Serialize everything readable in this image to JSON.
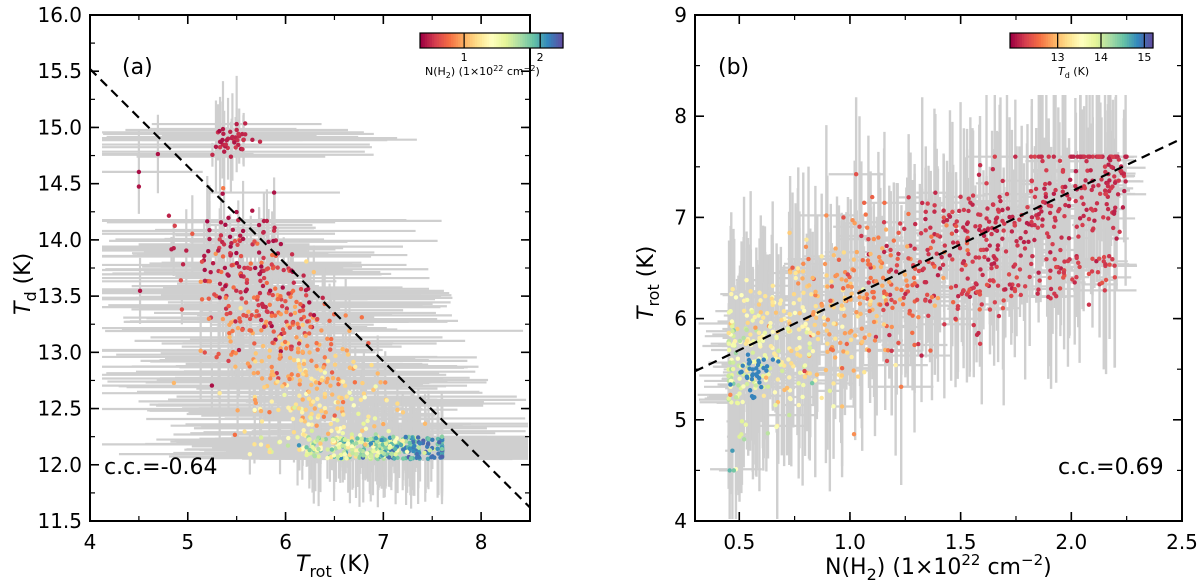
{
  "chart_data": [
    {
      "type": "scatter",
      "panel": "(a)",
      "xlabel": "T_rot (K)",
      "ylabel": "T_d (K)",
      "xlim": [
        4,
        8.5
      ],
      "ylim": [
        11.5,
        16.0
      ],
      "xticks": [
        4,
        5,
        6,
        7,
        8
      ],
      "xticklabels": [
        "4",
        "5",
        "6",
        "7",
        "8"
      ],
      "yticks": [
        11.5,
        12.0,
        12.5,
        13.0,
        13.5,
        14.0,
        14.5,
        15.0,
        15.5,
        16.0
      ],
      "yticklabels": [
        "11.5",
        "12.0",
        "12.5",
        "13.0",
        "13.5",
        "14.0",
        "14.5",
        "15.0",
        "15.5",
        "16.0"
      ],
      "fit_line": {
        "x": [
          4,
          8.5
        ],
        "y": [
          15.52,
          11.62
        ]
      },
      "annotation": "c.c.=-0.64",
      "colorbar": {
        "quantity": "N(H2)",
        "label": "N(H2) (1×10²² cm⁻²)",
        "ticks": [
          1,
          2
        ],
        "range": [
          0.42,
          2.3
        ],
        "position": "top-right"
      },
      "point_groups": [
        {
          "T_rot": [
            5.5,
            5.6
          ],
          "T_d": [
            14.9,
            14.8
          ],
          "color_value": 0.45
        },
        {
          "T_rot": [
            4.8,
            7.3
          ],
          "T_d": [
            14.8,
            13.5
          ],
          "color_value": 0.6
        },
        {
          "T_rot": [
            5.5,
            7.4
          ],
          "T_d": [
            14.1,
            13.0
          ],
          "color_value": 1.0
        },
        {
          "T_rot": [
            6.1,
            7.5
          ],
          "T_d": [
            13.4,
            12.6
          ],
          "color_value": 1.35
        },
        {
          "T_rot": [
            6.4,
            7.5
          ],
          "T_d": [
            12.8,
            12.1
          ],
          "color_value": 1.9
        }
      ]
    },
    {
      "type": "scatter",
      "panel": "(b)",
      "xlabel": "N(H2) (1×10²² cm⁻²)",
      "ylabel": "T_rot (K)",
      "xlim": [
        0.3,
        2.5
      ],
      "ylim": [
        4,
        9
      ],
      "xticks": [
        0.5,
        1.0,
        1.5,
        2.0,
        2.5
      ],
      "xticklabels": [
        "0.5",
        "1.0",
        "1.5",
        "2.0",
        "2.5"
      ],
      "yticks": [
        4,
        5,
        6,
        7,
        8,
        9
      ],
      "yticklabels": [
        "4",
        "5",
        "6",
        "7",
        "8",
        "9"
      ],
      "fit_line": {
        "x": [
          0.3,
          2.5
        ],
        "y": [
          5.48,
          7.78
        ]
      },
      "annotation": "c.c.=0.69",
      "colorbar": {
        "quantity": "T_d",
        "label": "T_d (K)",
        "ticks": [
          13,
          14,
          15
        ],
        "range": [
          11.9,
          15.2
        ],
        "position": "top-right"
      },
      "point_groups": [
        {
          "NH2": [
            0.45,
            0.7
          ],
          "T_rot": [
            4.8,
            6.2
          ],
          "T_d": 14.8
        },
        {
          "NH2": [
            0.6,
            1.0
          ],
          "T_rot": [
            5.6,
            6.8
          ],
          "T_d": 13.8
        },
        {
          "NH2": [
            0.9,
            1.5
          ],
          "T_rot": [
            5.8,
            7.2
          ],
          "T_d": 13.2
        },
        {
          "NH2": [
            1.3,
            1.9
          ],
          "T_rot": [
            6.0,
            7.3
          ],
          "T_d": 12.6
        },
        {
          "NH2": [
            1.6,
            2.2
          ],
          "T_rot": [
            6.3,
            7.5
          ],
          "T_d": 12.2
        }
      ]
    }
  ],
  "labels": {
    "panel_a": {
      "tag": "(a)",
      "cc": "c.c.=-0.64",
      "xlabel_main": "T",
      "xlabel_sub": "rot",
      "xlabel_unit": " (K)",
      "ylabel_main": "T",
      "ylabel_sub": "d",
      "ylabel_unit": " (K)",
      "cb_label_pre": "N(H",
      "cb_label_sub": "2",
      "cb_label_mid": ") (1×10",
      "cb_label_sup": "22",
      "cb_label_post": " cm",
      "cb_label_sup2": "−2",
      "cb_label_end": ")"
    },
    "panel_b": {
      "tag": "(b)",
      "cc": "c.c.=0.69",
      "xlabel_pre": "N(H",
      "xlabel_sub": "2",
      "xlabel_mid": ") (1×10",
      "xlabel_sup": "22",
      "xlabel_post": " cm",
      "xlabel_sup2": "−2",
      "xlabel_end": ")",
      "ylabel_main": "T",
      "ylabel_sub": "rot",
      "ylabel_unit": " (K)",
      "cb_label_main": "T",
      "cb_label_sub": "d",
      "cb_label_unit": " (K)"
    }
  }
}
